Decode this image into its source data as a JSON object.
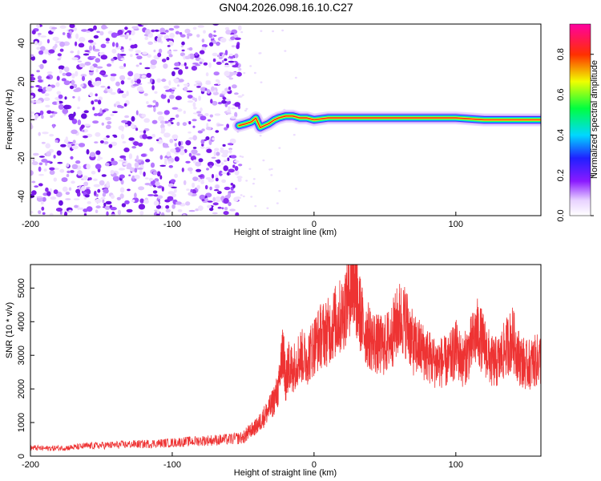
{
  "title": "GN04.2026.098.16.10.C27",
  "chart_data": [
    {
      "type": "heatmap",
      "xlabel": "Height of straight line (km)",
      "ylabel": "Frequency (Hz)",
      "xlim": [
        -200,
        160
      ],
      "ylim": [
        -50,
        50
      ],
      "xticks": [
        -200,
        -100,
        0,
        100
      ],
      "yticks": [
        -40,
        -20,
        0,
        20,
        40
      ],
      "noise_region": {
        "x": [
          -200,
          -52
        ],
        "y": [
          -50,
          50
        ],
        "amplitude_range": [
          0.05,
          0.25
        ]
      },
      "signal_ridge": {
        "x": [
          -53,
          -48,
          -44,
          -41,
          -38,
          -35,
          -32,
          -28,
          -25,
          -20,
          -15,
          -10,
          -5,
          0,
          10,
          20,
          40,
          60,
          80,
          100,
          120,
          140,
          160
        ],
        "y": [
          -3,
          -2,
          -1,
          1,
          -4,
          -3,
          -2,
          0,
          1,
          2,
          2,
          1,
          1,
          0,
          1,
          1,
          1,
          1,
          1,
          1,
          0,
          0,
          0
        ],
        "peak_amplitude": 0.9
      },
      "colorbar": {
        "label": "Normalized spectral amplitude",
        "range": [
          0.0,
          0.95
        ],
        "ticks": [
          0.0,
          0.2,
          0.4,
          0.6,
          0.8
        ],
        "tick_labels": [
          "0.0",
          "0.2",
          "0.4",
          "0.6",
          "0.8"
        ],
        "colormap": "rainbow (white-violet-blue-cyan-green-yellow-red-magenta)"
      }
    },
    {
      "type": "line",
      "xlabel": "Height of straight line (km)",
      "ylabel": "SNR (10 * v/v)",
      "xlim": [
        -200,
        160
      ],
      "ylim": [
        0,
        5700
      ],
      "xticks": [
        -200,
        -100,
        0,
        100
      ],
      "yticks": [
        0,
        1000,
        2000,
        3000,
        4000,
        5000
      ],
      "color": "#ee3333",
      "series": [
        {
          "x": [
            -200,
            -190,
            -180,
            -170,
            -160,
            -150,
            -140,
            -130,
            -120,
            -110,
            -100,
            -90,
            -80,
            -70,
            -60,
            -50,
            -45,
            -40,
            -35,
            -30,
            -25,
            -22,
            -20,
            -18,
            -15,
            -10,
            -5,
            0,
            5,
            10,
            15,
            20,
            25,
            28,
            30,
            35,
            40,
            45,
            50,
            55,
            60,
            65,
            70,
            75,
            80,
            85,
            90,
            95,
            100,
            105,
            110,
            115,
            120,
            125,
            130,
            135,
            140,
            145,
            150,
            155,
            160
          ],
          "y": [
            250,
            230,
            240,
            260,
            300,
            320,
            330,
            350,
            360,
            380,
            400,
            430,
            460,
            480,
            500,
            550,
            750,
            900,
            1200,
            1500,
            2000,
            3200,
            2200,
            2700,
            2600,
            3000,
            2900,
            3300,
            3600,
            3700,
            4000,
            4200,
            4900,
            5400,
            4700,
            3800,
            3500,
            3300,
            3300,
            3600,
            4100,
            4000,
            3300,
            3200,
            3000,
            2800,
            2800,
            2800,
            3200,
            2800,
            3200,
            3700,
            3300,
            2800,
            2800,
            3200,
            3500,
            2900,
            2700,
            2800,
            2900
          ]
        }
      ]
    }
  ]
}
